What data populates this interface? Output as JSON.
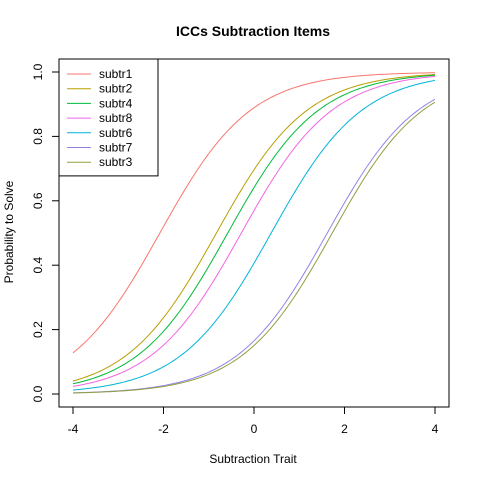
{
  "chart_data": {
    "type": "line",
    "title": "ICCs Subtraction Items",
    "xlabel": "Subtraction Trait",
    "ylabel": "Probability to Solve",
    "xlim": [
      -4,
      4
    ],
    "ylim": [
      0,
      1
    ],
    "x_ticks": [
      "-4",
      "-2",
      "0",
      "2",
      "4"
    ],
    "y_ticks": [
      "0.0",
      "0.2",
      "0.4",
      "0.6",
      "0.8",
      "1.0"
    ],
    "legend_position": "top-left",
    "series": [
      {
        "name": "subtr1",
        "color": "#F8766D",
        "curve": {
          "discrimination": 1,
          "difficulty": -2.08
        }
      },
      {
        "name": "subtr2",
        "color": "#B79F00",
        "curve": {
          "discrimination": 1,
          "difficulty": -0.83
        }
      },
      {
        "name": "subtr4",
        "color": "#00BA38",
        "curve": {
          "discrimination": 1,
          "difficulty": -0.58
        }
      },
      {
        "name": "subtr8",
        "color": "#F564E3",
        "curve": {
          "discrimination": 1,
          "difficulty": -0.28
        }
      },
      {
        "name": "subtr6",
        "color": "#00B4D8",
        "curve": {
          "discrimination": 1,
          "difficulty": 0.38
        }
      },
      {
        "name": "subtr7",
        "color": "#9A7FE8",
        "curve": {
          "discrimination": 1,
          "difficulty": 1.62
        }
      },
      {
        "name": "subtr3",
        "color": "#8DA040",
        "curve": {
          "discrimination": 1,
          "difficulty": 1.73
        }
      }
    ]
  }
}
